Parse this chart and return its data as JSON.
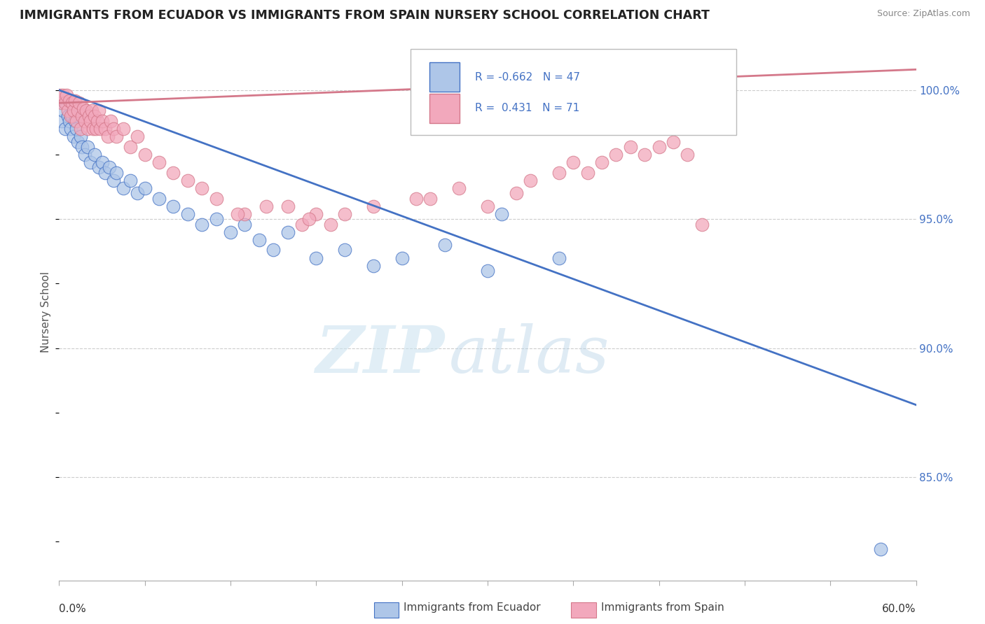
{
  "title": "IMMIGRANTS FROM ECUADOR VS IMMIGRANTS FROM SPAIN NURSERY SCHOOL CORRELATION CHART",
  "source": "Source: ZipAtlas.com",
  "ylabel": "Nursery School",
  "xlim": [
    0.0,
    60.0
  ],
  "ylim": [
    81.0,
    101.8
  ],
  "yticks": [
    85.0,
    90.0,
    95.0,
    100.0
  ],
  "ytick_labels": [
    "85.0%",
    "90.0%",
    "95.0%",
    "100.0%"
  ],
  "xtick_left_label": "0.0%",
  "xtick_right_label": "60.0%",
  "legend_label_1": "Immigrants from Ecuador",
  "legend_label_2": "Immigrants from Spain",
  "R_ecuador": -0.662,
  "N_ecuador": 47,
  "R_spain": 0.431,
  "N_spain": 71,
  "ecuador_color": "#aec6e8",
  "spain_color": "#f2a8bc",
  "ecuador_line_color": "#4472c4",
  "spain_line_color": "#d4788a",
  "tick_color": "#4472c4",
  "grid_color": "#cccccc",
  "ecuador_line_y0": 100.0,
  "ecuador_line_y1": 87.8,
  "spain_line_y0": 99.5,
  "spain_line_y1": 100.8,
  "ecuador_scatter_x": [
    0.2,
    0.3,
    0.4,
    0.5,
    0.6,
    0.7,
    0.8,
    0.9,
    1.0,
    1.1,
    1.2,
    1.3,
    1.5,
    1.6,
    1.8,
    2.0,
    2.2,
    2.5,
    2.8,
    3.0,
    3.2,
    3.5,
    3.8,
    4.0,
    4.5,
    5.0,
    5.5,
    6.0,
    7.0,
    8.0,
    9.0,
    10.0,
    11.0,
    12.0,
    13.0,
    14.0,
    15.0,
    16.0,
    18.0,
    20.0,
    22.0,
    24.0,
    27.0,
    30.0,
    35.0,
    57.5,
    31.0
  ],
  "ecuador_scatter_y": [
    98.8,
    99.2,
    98.5,
    99.5,
    99.0,
    98.8,
    98.5,
    99.0,
    98.2,
    98.8,
    98.5,
    98.0,
    98.2,
    97.8,
    97.5,
    97.8,
    97.2,
    97.5,
    97.0,
    97.2,
    96.8,
    97.0,
    96.5,
    96.8,
    96.2,
    96.5,
    96.0,
    96.2,
    95.8,
    95.5,
    95.2,
    94.8,
    95.0,
    94.5,
    94.8,
    94.2,
    93.8,
    94.5,
    93.5,
    93.8,
    93.2,
    93.5,
    94.0,
    93.0,
    93.5,
    82.2,
    95.2
  ],
  "spain_scatter_x": [
    0.1,
    0.2,
    0.3,
    0.4,
    0.5,
    0.6,
    0.7,
    0.8,
    0.9,
    1.0,
    1.1,
    1.2,
    1.3,
    1.4,
    1.5,
    1.6,
    1.7,
    1.8,
    1.9,
    2.0,
    2.1,
    2.2,
    2.3,
    2.4,
    2.5,
    2.6,
    2.7,
    2.8,
    2.9,
    3.0,
    3.2,
    3.4,
    3.6,
    3.8,
    4.0,
    4.5,
    5.0,
    5.5,
    6.0,
    7.0,
    8.0,
    9.0,
    10.0,
    11.0,
    13.0,
    16.0,
    17.0,
    18.0,
    19.0,
    20.0,
    25.0,
    28.0,
    30.0,
    32.0,
    33.0,
    35.0,
    36.0,
    37.0,
    38.0,
    39.0,
    40.0,
    41.0,
    42.0,
    43.0,
    44.0,
    45.0,
    17.5,
    22.0,
    26.0,
    14.5,
    12.5
  ],
  "spain_scatter_y": [
    99.8,
    99.5,
    99.8,
    99.5,
    99.8,
    99.2,
    99.6,
    99.0,
    99.5,
    99.2,
    99.6,
    98.8,
    99.2,
    99.5,
    98.5,
    99.0,
    99.3,
    98.8,
    99.2,
    98.5,
    99.0,
    98.8,
    99.2,
    98.5,
    99.0,
    98.5,
    98.8,
    99.2,
    98.5,
    98.8,
    98.5,
    98.2,
    98.8,
    98.5,
    98.2,
    98.5,
    97.8,
    98.2,
    97.5,
    97.2,
    96.8,
    96.5,
    96.2,
    95.8,
    95.2,
    95.5,
    94.8,
    95.2,
    94.8,
    95.2,
    95.8,
    96.2,
    95.5,
    96.0,
    96.5,
    96.8,
    97.2,
    96.8,
    97.2,
    97.5,
    97.8,
    97.5,
    97.8,
    98.0,
    97.5,
    94.8,
    95.0,
    95.5,
    95.8,
    95.5,
    95.2
  ]
}
